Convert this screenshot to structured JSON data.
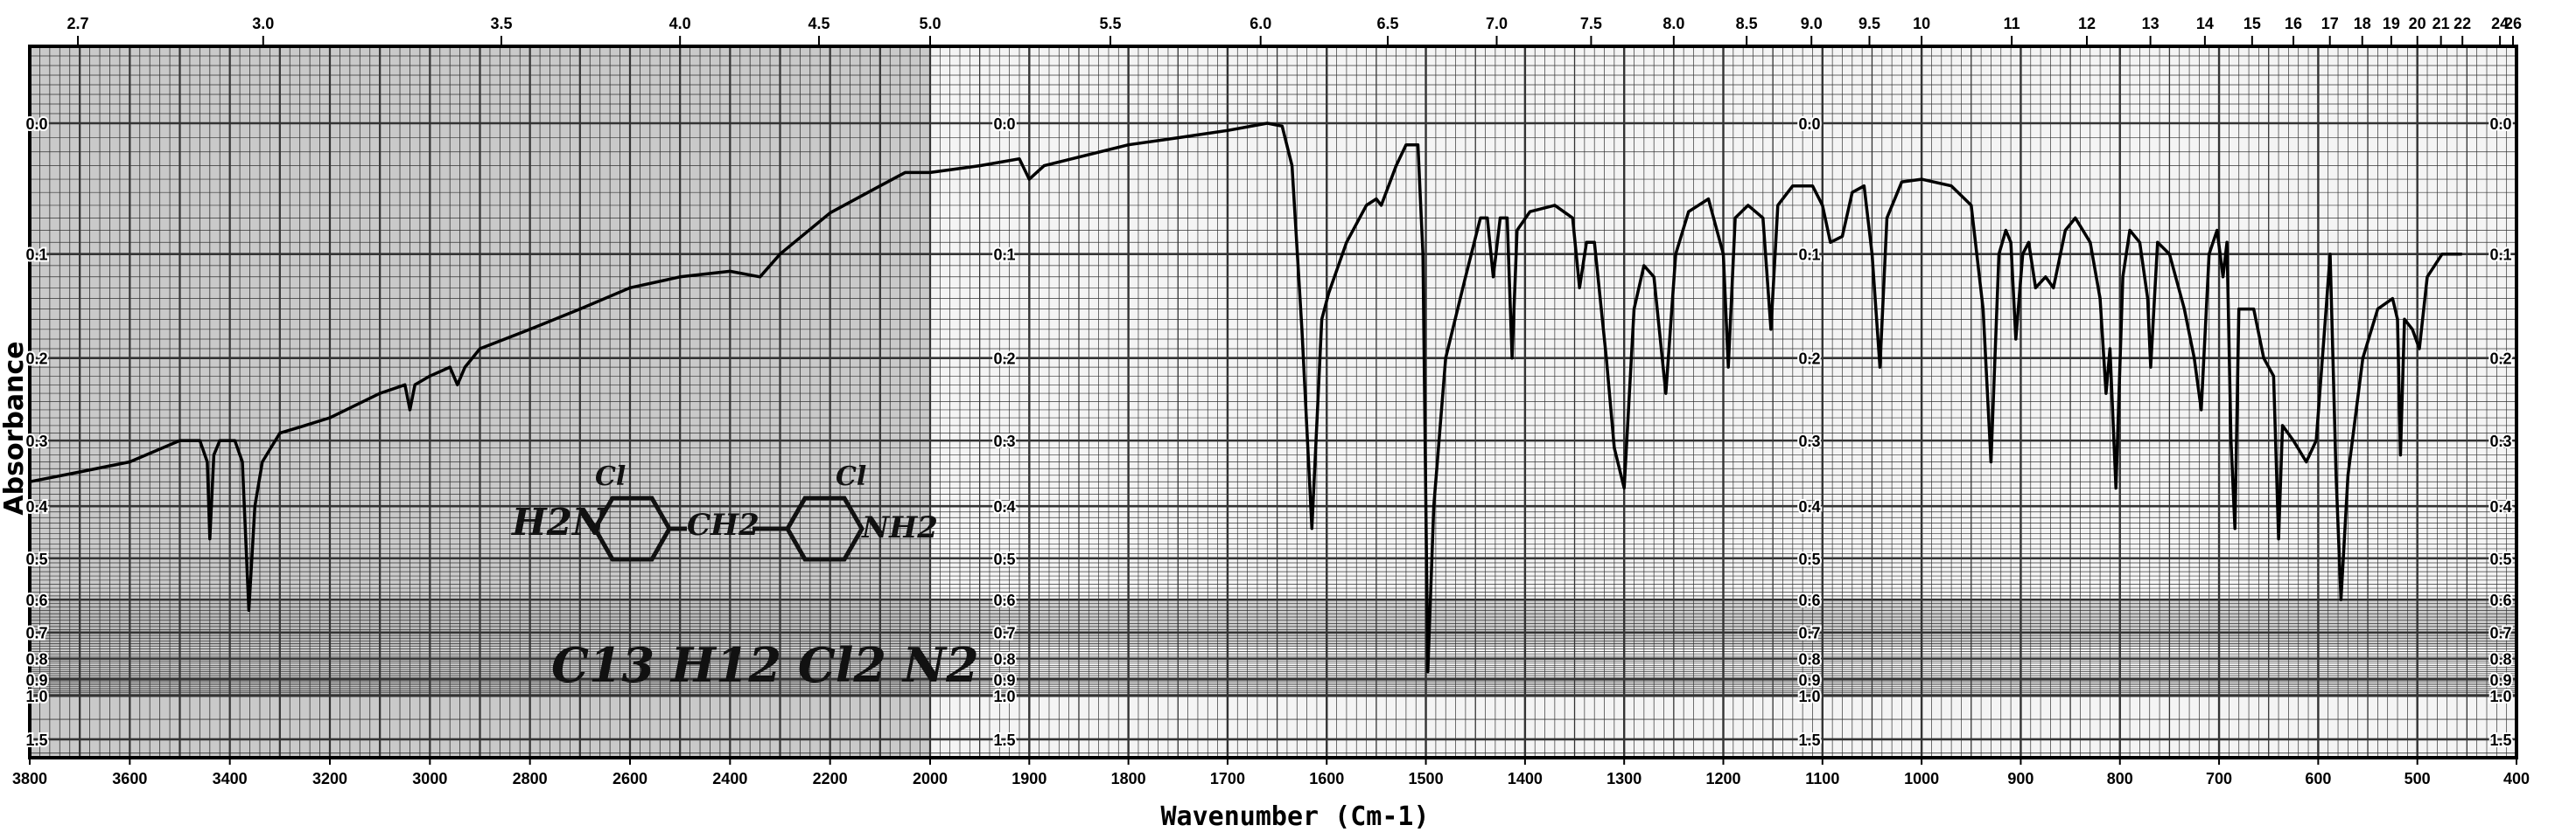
{
  "chart_data": {
    "type": "line",
    "title": "",
    "xlabel": "Wavenumber (Cm-1)",
    "ylabel": "Absorbance",
    "xlim": [
      3800,
      400
    ],
    "ylim": [
      0.0,
      1.5
    ],
    "grid": true,
    "x_ticks_bottom": [
      "3800",
      "3600",
      "3400",
      "3200",
      "3000",
      "2800",
      "2600",
      "2400",
      "2200",
      "2000",
      "1900",
      "1800",
      "1700",
      "1600",
      "1500",
      "1400",
      "1300",
      "1200",
      "1100",
      "1000",
      "900",
      "800",
      "700",
      "600",
      "500",
      "400"
    ],
    "x_ticks_top_micron": [
      "2.7",
      "3.0",
      "3.5",
      "4.0",
      "4.5",
      "5.0",
      "5.5",
      "6.0",
      "6.5",
      "7.0",
      "7.5",
      "8.0",
      "8.5",
      "9.0",
      "9.5",
      "10",
      "11",
      "12",
      "13",
      "14",
      "15",
      "16",
      "17",
      "18",
      "19",
      "20",
      "21",
      "22",
      "24",
      "26"
    ],
    "y_ticks": [
      "0.0",
      "0.1",
      "0.2",
      "0.3",
      "0.4",
      "0.5",
      "0.6",
      "0.7",
      "0.8",
      "0.9",
      "1.0",
      "1.5"
    ],
    "annotations": {
      "structure": "H2N-C6H3(Cl)-CH2-C6H3(Cl)-NH2",
      "structure_left": "H2N",
      "structure_mid": "CH2",
      "structure_right": "NH2",
      "structure_cl": "Cl",
      "formula": "C13 H12 Cl2 N2"
    },
    "series": [
      {
        "name": "IR spectrum",
        "points": [
          [
            3800,
            0.36
          ],
          [
            3700,
            0.345
          ],
          [
            3600,
            0.33
          ],
          [
            3500,
            0.3
          ],
          [
            3460,
            0.3
          ],
          [
            3445,
            0.33
          ],
          [
            3440,
            0.46
          ],
          [
            3432,
            0.32
          ],
          [
            3420,
            0.3
          ],
          [
            3390,
            0.3
          ],
          [
            3375,
            0.33
          ],
          [
            3362,
            0.63
          ],
          [
            3350,
            0.4
          ],
          [
            3335,
            0.33
          ],
          [
            3300,
            0.29
          ],
          [
            3250,
            0.28
          ],
          [
            3200,
            0.27
          ],
          [
            3100,
            0.24
          ],
          [
            3050,
            0.23
          ],
          [
            3040,
            0.26
          ],
          [
            3030,
            0.23
          ],
          [
            3000,
            0.22
          ],
          [
            2960,
            0.21
          ],
          [
            2945,
            0.23
          ],
          [
            2930,
            0.21
          ],
          [
            2900,
            0.19
          ],
          [
            2800,
            0.17
          ],
          [
            2700,
            0.15
          ],
          [
            2600,
            0.13
          ],
          [
            2500,
            0.12
          ],
          [
            2400,
            0.115
          ],
          [
            2340,
            0.12
          ],
          [
            2300,
            0.1
          ],
          [
            2200,
            0.066
          ],
          [
            2100,
            0.045
          ],
          [
            2050,
            0.035
          ],
          [
            2000,
            0.035
          ],
          [
            1950,
            0.03
          ],
          [
            1910,
            0.025
          ],
          [
            1900,
            0.04
          ],
          [
            1885,
            0.03
          ],
          [
            1800,
            0.015
          ],
          [
            1750,
            0.01
          ],
          [
            1700,
            0.005
          ],
          [
            1660,
            0
          ],
          [
            1645,
            0.002
          ],
          [
            1635,
            0.03
          ],
          [
            1625,
            0.17
          ],
          [
            1615,
            0.44
          ],
          [
            1605,
            0.16
          ],
          [
            1598,
            0.135
          ],
          [
            1580,
            0.09
          ],
          [
            1560,
            0.06
          ],
          [
            1550,
            0.055
          ],
          [
            1545,
            0.06
          ],
          [
            1530,
            0.03
          ],
          [
            1520,
            0.015
          ],
          [
            1508,
            0.015
          ],
          [
            1503,
            0.1
          ],
          [
            1498,
            0.86
          ],
          [
            1492,
            0.4
          ],
          [
            1480,
            0.2
          ],
          [
            1460,
            0.12
          ],
          [
            1445,
            0.07
          ],
          [
            1438,
            0.07
          ],
          [
            1432,
            0.12
          ],
          [
            1425,
            0.07
          ],
          [
            1418,
            0.07
          ],
          [
            1413,
            0.2
          ],
          [
            1408,
            0.08
          ],
          [
            1395,
            0.065
          ],
          [
            1370,
            0.06
          ],
          [
            1352,
            0.07
          ],
          [
            1345,
            0.13
          ],
          [
            1338,
            0.09
          ],
          [
            1330,
            0.09
          ],
          [
            1318,
            0.2
          ],
          [
            1310,
            0.31
          ],
          [
            1300,
            0.37
          ],
          [
            1290,
            0.15
          ],
          [
            1280,
            0.11
          ],
          [
            1270,
            0.12
          ],
          [
            1258,
            0.24
          ],
          [
            1248,
            0.1
          ],
          [
            1235,
            0.065
          ],
          [
            1215,
            0.055
          ],
          [
            1200,
            0.1
          ],
          [
            1195,
            0.21
          ],
          [
            1188,
            0.07
          ],
          [
            1175,
            0.06
          ],
          [
            1160,
            0.07
          ],
          [
            1152,
            0.17
          ],
          [
            1145,
            0.06
          ],
          [
            1130,
            0.045
          ],
          [
            1110,
            0.045
          ],
          [
            1100,
            0.06
          ],
          [
            1092,
            0.09
          ],
          [
            1080,
            0.085
          ],
          [
            1070,
            0.05
          ],
          [
            1058,
            0.045
          ],
          [
            1050,
            0.1
          ],
          [
            1042,
            0.21
          ],
          [
            1035,
            0.07
          ],
          [
            1020,
            0.042
          ],
          [
            1000,
            0.04
          ],
          [
            970,
            0.045
          ],
          [
            950,
            0.06
          ],
          [
            938,
            0.15
          ],
          [
            930,
            0.33
          ],
          [
            922,
            0.1
          ],
          [
            915,
            0.08
          ],
          [
            910,
            0.09
          ],
          [
            905,
            0.18
          ],
          [
            898,
            0.1
          ],
          [
            892,
            0.09
          ],
          [
            885,
            0.13
          ],
          [
            875,
            0.12
          ],
          [
            867,
            0.13
          ],
          [
            855,
            0.08
          ],
          [
            845,
            0.07
          ],
          [
            830,
            0.09
          ],
          [
            820,
            0.14
          ],
          [
            814,
            0.24
          ],
          [
            810,
            0.19
          ],
          [
            804,
            0.37
          ],
          [
            797,
            0.12
          ],
          [
            790,
            0.08
          ],
          [
            780,
            0.09
          ],
          [
            772,
            0.14
          ],
          [
            769,
            0.21
          ],
          [
            762,
            0.09
          ],
          [
            750,
            0.1
          ],
          [
            735,
            0.15
          ],
          [
            725,
            0.2
          ],
          [
            718,
            0.26
          ],
          [
            710,
            0.1
          ],
          [
            702,
            0.08
          ],
          [
            696,
            0.12
          ],
          [
            692,
            0.09
          ],
          [
            688,
            0.3
          ],
          [
            684,
            0.44
          ],
          [
            680,
            0.15
          ],
          [
            665,
            0.15
          ],
          [
            655,
            0.2
          ],
          [
            645,
            0.22
          ],
          [
            640,
            0.46
          ],
          [
            636,
            0.28
          ],
          [
            625,
            0.3
          ],
          [
            612,
            0.33
          ],
          [
            602,
            0.3
          ],
          [
            592,
            0.15
          ],
          [
            588,
            0.1
          ],
          [
            582,
            0.35
          ],
          [
            577,
            0.6
          ],
          [
            570,
            0.35
          ],
          [
            555,
            0.2
          ],
          [
            540,
            0.15
          ],
          [
            525,
            0.14
          ],
          [
            520,
            0.16
          ],
          [
            517,
            0.32
          ],
          [
            513,
            0.16
          ],
          [
            505,
            0.17
          ],
          [
            498,
            0.19
          ],
          [
            490,
            0.12
          ],
          [
            475,
            0.1
          ],
          [
            455,
            0.1
          ]
        ]
      }
    ]
  }
}
